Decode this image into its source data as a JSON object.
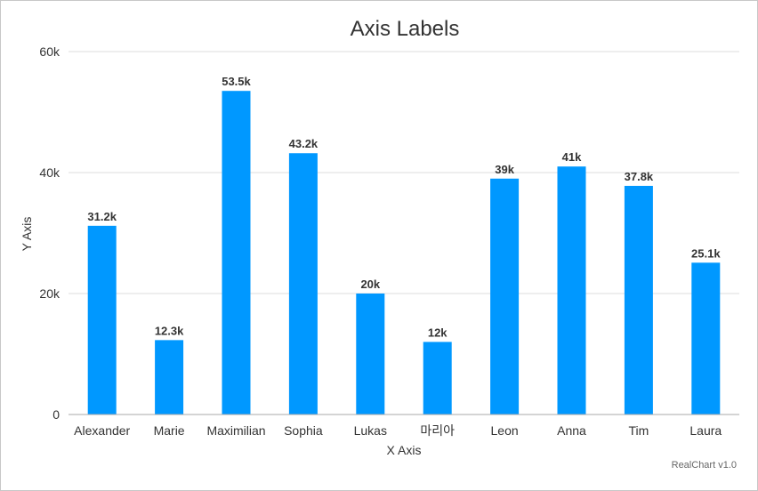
{
  "chart_data": {
    "type": "bar",
    "title": "Axis Labels",
    "xlabel": "X Axis",
    "ylabel": "Y Axis",
    "categories": [
      "Alexander",
      "Marie",
      "Maximilian",
      "Sophia",
      "Lukas",
      "마리아",
      "Leon",
      "Anna",
      "Tim",
      "Laura"
    ],
    "values": [
      31200,
      12300,
      53500,
      43200,
      20000,
      12000,
      39000,
      41000,
      37800,
      25100
    ],
    "data_labels": [
      "31.2k",
      "12.3k",
      "53.5k",
      "43.2k",
      "20k",
      "12k",
      "39k",
      "41k",
      "37.8k",
      "25.1k"
    ],
    "y_ticks": [
      0,
      20000,
      40000,
      60000
    ],
    "y_tick_labels": [
      "0",
      "20k",
      "40k",
      "60k"
    ],
    "ylim": [
      0,
      60000
    ],
    "grid": true,
    "legend": "none",
    "bar_color": "#0098ff"
  },
  "credit": "RealChart v1.0"
}
